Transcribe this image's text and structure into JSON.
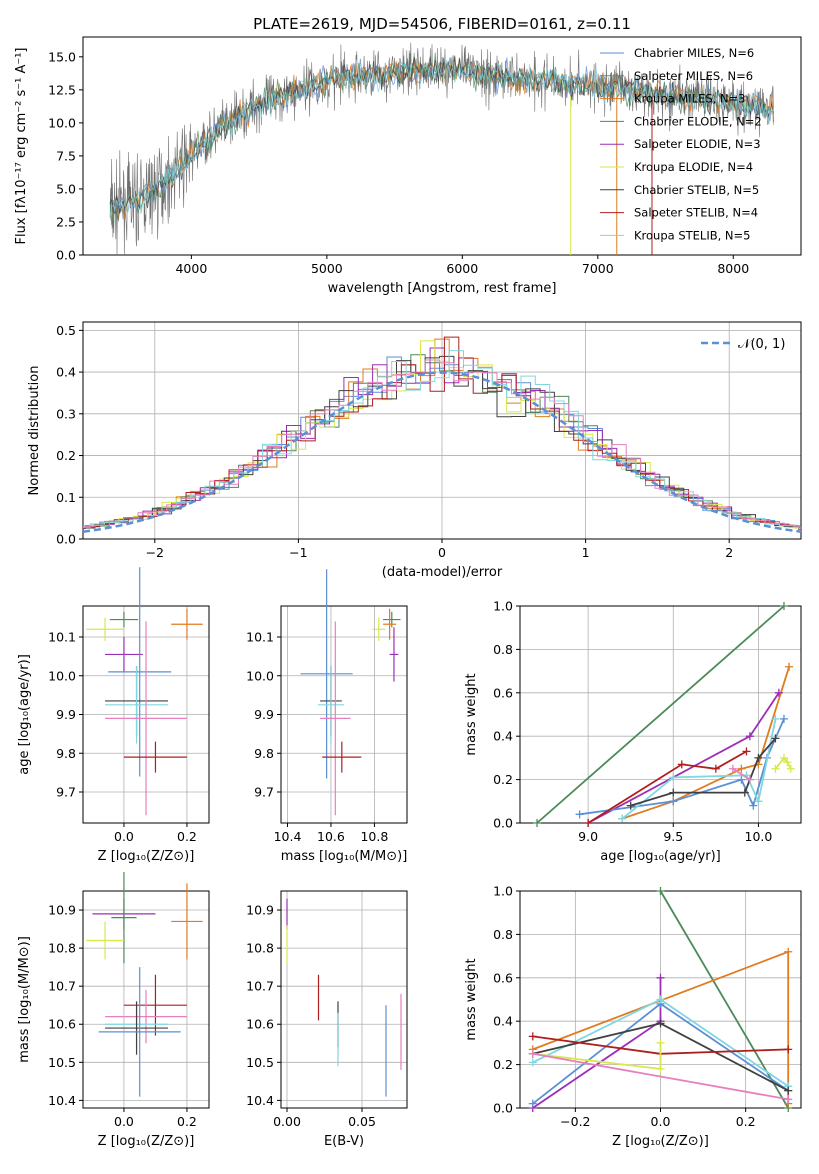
{
  "colors": {
    "chabrier_miles": "#5b8fd6",
    "salpeter_miles": "#2e9f8f",
    "kroupa_miles": "#e07b1f",
    "chabrier_elodie": "#4c8a5a",
    "salpeter_elodie": "#9b2fb5",
    "kroupa_elodie": "#d8e84a",
    "chabrier_stelib": "#404040",
    "salpeter_stelib": "#b01f1f",
    "kroupa_stelib": "#80d7e0",
    "pink": "#e77fbf",
    "spectrum": "#6f6f6f",
    "gauss": "#5b8fd6"
  },
  "chart_data": [
    {
      "type": "line",
      "title": "PLATE=2619, MJD=54506, FIBERID=0161, z=0.11",
      "xlabel": "wavelength [Angstrom, rest frame]",
      "ylabel": "Flux [fλ10⁻¹⁷ erg cm⁻² s⁻¹ A⁻¹]",
      "xlim": [
        3200,
        8500
      ],
      "ylim": [
        0,
        16.5
      ],
      "xticks": [
        "4000",
        "5000",
        "6000",
        "7000",
        "8000"
      ],
      "yticks": [
        "0.0",
        "2.5",
        "5.0",
        "7.5",
        "10.0",
        "12.5",
        "15.0"
      ],
      "legend_position": "right",
      "series": [
        {
          "name": "Chabrier MILES, N_SSP=6"
        },
        {
          "name": "Salpeter MILES, N_SSP=6"
        },
        {
          "name": "Kroupa MILES, N_SSP=3"
        },
        {
          "name": "Chabrier ELODIE, N_SSP=2"
        },
        {
          "name": "Salpeter ELODIE, N_SSP=3"
        },
        {
          "name": "Kroupa ELODIE, N_SSP=4"
        },
        {
          "name": "Chabrier STELIB, N_SSP=5"
        },
        {
          "name": "Salpeter STELIB, N_SSP=4"
        },
        {
          "name": "Kroupa STELIB, N_SSP=5"
        }
      ],
      "continuum": {
        "x": [
          3400,
          3600,
          3800,
          4000,
          4200,
          4500,
          4800,
          5000,
          5200,
          5500,
          5800,
          6000,
          6200,
          6500,
          7000,
          7400,
          7800,
          8300
        ],
        "y": [
          3.5,
          4.0,
          5.5,
          7.5,
          9.5,
          11.5,
          12.5,
          13.2,
          13.5,
          13.8,
          14.0,
          14.0,
          13.6,
          13.3,
          12.8,
          12.3,
          11.8,
          11.0
        ]
      }
    },
    {
      "type": "area",
      "xlabel": "(data-model)/error",
      "ylabel": "Normed distribution",
      "xlim": [
        -2.5,
        2.5
      ],
      "ylim": [
        0,
        0.52
      ],
      "xticks": [
        "−2",
        "−1",
        "0",
        "1",
        "2"
      ],
      "yticks": [
        "0.0",
        "0.1",
        "0.2",
        "0.3",
        "0.4",
        "0.5"
      ],
      "legend": "𝒩(0, 1)",
      "legend_position": "top-right"
    },
    {
      "type": "scatter",
      "xlabel": "Z [log₁₀(Z/Z⊙)]",
      "ylabel": "age  [log₁₀(age/yr)]",
      "xlim": [
        -0.13,
        0.27
      ],
      "ylim": [
        9.62,
        10.18
      ],
      "xticks": [
        "0.0",
        "0.2"
      ],
      "yticks": [
        "9.7",
        "9.8",
        "9.9",
        "10.0",
        "10.1"
      ],
      "points": [
        {
          "c": "chabrier_elodie",
          "x": 0.0,
          "y": 10.145,
          "xe": 0.045,
          "ye": 0.02
        },
        {
          "c": "kroupa_miles",
          "x": 0.2,
          "y": 10.133,
          "xe": 0.05,
          "ye": 0.04
        },
        {
          "c": "kroupa_elodie",
          "x": -0.06,
          "y": 10.12,
          "xe": 0.06,
          "ye": 0.03
        },
        {
          "c": "salpeter_elodie",
          "x": 0.0,
          "y": 10.055,
          "xe": 0.06,
          "ye": 0.045
        },
        {
          "c": "chabrier_miles",
          "x": 0.05,
          "y": 10.01,
          "xe": 0.1,
          "ye": 0.27
        },
        {
          "c": "chabrier_stelib",
          "x": 0.04,
          "y": 9.935,
          "xe": 0.1,
          "ye": 0.09
        },
        {
          "c": "kroupa_stelib",
          "x": 0.04,
          "y": 9.925,
          "xe": 0.1,
          "ye": 0.1
        },
        {
          "c": "pink",
          "x": 0.07,
          "y": 9.89,
          "xe": 0.13,
          "ye": 0.25
        },
        {
          "c": "salpeter_stelib",
          "x": 0.1,
          "y": 9.79,
          "xe": 0.1,
          "ye": 0.04
        }
      ]
    },
    {
      "type": "scatter",
      "xlabel": "mass [log₁₀(M/M⊙)]",
      "xlim": [
        10.37,
        10.95
      ],
      "ylim": [
        9.62,
        10.18
      ],
      "xticks": [
        "10.4",
        "10.6",
        "10.8"
      ],
      "yticks": [
        "9.7",
        "9.8",
        "9.9",
        "10.0",
        "10.1"
      ],
      "points": [
        {
          "c": "chabrier_elodie",
          "x": 10.88,
          "y": 10.145,
          "xe": 0.04,
          "ye": 0.02
        },
        {
          "c": "kroupa_miles",
          "x": 10.87,
          "y": 10.133,
          "xe": 0.03,
          "ye": 0.04
        },
        {
          "c": "kroupa_elodie",
          "x": 10.82,
          "y": 10.12,
          "xe": 0.03,
          "ye": 0.03
        },
        {
          "c": "salpeter_elodie",
          "x": 10.89,
          "y": 10.055,
          "xe": 0.02,
          "ye": 0.07
        },
        {
          "c": "chabrier_miles",
          "x": 10.58,
          "y": 10.005,
          "xe": 0.12,
          "ye": 0.27
        },
        {
          "c": "chabrier_stelib",
          "x": 10.6,
          "y": 9.935,
          "xe": 0.05,
          "ye": 0.09
        },
        {
          "c": "kroupa_stelib",
          "x": 10.6,
          "y": 9.925,
          "xe": 0.06,
          "ye": 0.1
        },
        {
          "c": "pink",
          "x": 10.62,
          "y": 9.89,
          "xe": 0.07,
          "ye": 0.25
        },
        {
          "c": "salpeter_stelib",
          "x": 10.65,
          "y": 9.79,
          "xe": 0.09,
          "ye": 0.04
        }
      ]
    },
    {
      "type": "line",
      "xlabel": "age  [log₁₀(age/yr)]",
      "ylabel": "mass weight",
      "xlim": [
        8.6,
        10.25
      ],
      "ylim": [
        0,
        1
      ],
      "xticks": [
        "9.0",
        "9.5",
        "10.0"
      ],
      "yticks": [
        "0.0",
        "0.2",
        "0.4",
        "0.6",
        "0.8",
        "1.0"
      ],
      "series": [
        {
          "c": "chabrier_elodie",
          "x": [
            8.7,
            10.15
          ],
          "y": [
            0.0,
            1.0
          ]
        },
        {
          "c": "kroupa_miles",
          "x": [
            9.2,
            9.5,
            9.9,
            10.0,
            10.18
          ],
          "y": [
            0.02,
            0.1,
            0.25,
            0.27,
            0.72
          ]
        },
        {
          "c": "salpeter_elodie",
          "x": [
            9.0,
            9.95,
            10.12
          ],
          "y": [
            0.0,
            0.4,
            0.6
          ]
        },
        {
          "c": "chabrier_miles",
          "x": [
            8.95,
            9.5,
            9.9,
            9.97,
            10.05,
            10.15
          ],
          "y": [
            0.04,
            0.1,
            0.2,
            0.08,
            0.3,
            0.48
          ]
        },
        {
          "c": "kroupa_stelib",
          "x": [
            9.2,
            9.5,
            9.93,
            10.0,
            10.1
          ],
          "y": [
            0.02,
            0.21,
            0.22,
            0.1,
            0.48
          ]
        },
        {
          "c": "chabrier_stelib",
          "x": [
            9.25,
            9.5,
            9.92,
            10.0,
            10.1
          ],
          "y": [
            0.08,
            0.14,
            0.14,
            0.3,
            0.39
          ]
        },
        {
          "c": "salpeter_stelib",
          "x": [
            9.0,
            9.55,
            9.75,
            9.93
          ],
          "y": [
            0.0,
            0.27,
            0.25,
            0.33
          ]
        },
        {
          "c": "kroupa_elodie",
          "x": [
            10.1,
            10.15,
            10.17,
            10.19
          ],
          "y": [
            0.25,
            0.3,
            0.28,
            0.25
          ]
        },
        {
          "c": "pink",
          "x": [
            9.85,
            9.95
          ],
          "y": [
            0.25,
            0.2
          ]
        }
      ]
    },
    {
      "type": "scatter",
      "xlabel": "Z [log₁₀(Z/Z⊙)]",
      "ylabel": "mass [log₁₀(M/M⊙)]",
      "xlim": [
        -0.13,
        0.27
      ],
      "ylim": [
        10.38,
        10.95
      ],
      "xticks": [
        "0.0",
        "0.2"
      ],
      "yticks": [
        "10.4",
        "10.5",
        "10.6",
        "10.7",
        "10.8",
        "10.9"
      ],
      "points": [
        {
          "c": "salpeter_elodie",
          "x": 0.0,
          "y": 10.89,
          "xe": 0.1,
          "ye": 0.04
        },
        {
          "c": "chabrier_elodie",
          "x": 0.0,
          "y": 10.88,
          "xe": 0.04,
          "ye": 0.12
        },
        {
          "c": "kroupa_miles",
          "x": 0.2,
          "y": 10.87,
          "xe": 0.05,
          "ye": 0.1
        },
        {
          "c": "kroupa_elodie",
          "x": -0.06,
          "y": 10.82,
          "xe": 0.06,
          "ye": 0.05
        },
        {
          "c": "salpeter_stelib",
          "x": 0.1,
          "y": 10.65,
          "xe": 0.1,
          "ye": 0.08
        },
        {
          "c": "pink",
          "x": 0.07,
          "y": 10.62,
          "xe": 0.13,
          "ye": 0.07
        },
        {
          "c": "kroupa_stelib",
          "x": 0.04,
          "y": 10.6,
          "xe": 0.1,
          "ye": 0.06
        },
        {
          "c": "chabrier_stelib",
          "x": 0.04,
          "y": 10.59,
          "xe": 0.1,
          "ye": 0.07
        },
        {
          "c": "chabrier_miles",
          "x": 0.05,
          "y": 10.58,
          "xe": 0.13,
          "ye": 0.17
        }
      ]
    },
    {
      "type": "scatter",
      "xlabel": "E(B-V)",
      "xlim": [
        -0.004,
        0.08
      ],
      "ylim": [
        10.38,
        10.95
      ],
      "xticks": [
        "0.00",
        "0.05"
      ],
      "yticks": [
        "10.4",
        "10.5",
        "10.6",
        "10.7",
        "10.8",
        "10.9"
      ],
      "points": [
        {
          "c": "salpeter_elodie",
          "x": 0.0,
          "y": 10.89,
          "ye": 0.04
        },
        {
          "c": "kroupa_elodie",
          "x": 0.0,
          "y": 10.81,
          "ye": 0.05
        },
        {
          "c": "salpeter_stelib",
          "x": 0.021,
          "y": 10.67,
          "ye": 0.06
        },
        {
          "c": "chabrier_stelib",
          "x": 0.034,
          "y": 10.6,
          "ye": 0.06
        },
        {
          "c": "kroupa_stelib",
          "x": 0.034,
          "y": 10.56,
          "ye": 0.07
        },
        {
          "c": "chabrier_miles",
          "x": 0.066,
          "y": 10.53,
          "ye": 0.12
        },
        {
          "c": "pink",
          "x": 0.076,
          "y": 10.58,
          "ye": 0.1
        }
      ]
    },
    {
      "type": "line",
      "xlabel": "Z [log₁₀(Z/Z⊙)]",
      "ylabel": "mass weight",
      "xlim": [
        -0.33,
        0.33
      ],
      "ylim": [
        0,
        1
      ],
      "xticks": [
        "−0.2",
        "0.0",
        "0.2"
      ],
      "yticks": [
        "0.0",
        "0.2",
        "0.4",
        "0.6",
        "0.8",
        "1.0"
      ],
      "series": [
        {
          "c": "chabrier_elodie",
          "x": [
            0.0,
            0.3
          ],
          "y": [
            1.0,
            0.0
          ]
        },
        {
          "c": "kroupa_miles",
          "x": [
            -0.3,
            0.3,
            0.3
          ],
          "y": [
            0.27,
            0.72,
            0.02
          ]
        },
        {
          "c": "salpeter_elodie",
          "x": [
            -0.3,
            0.0,
            0.0
          ],
          "y": [
            0.0,
            0.4,
            0.6
          ]
        },
        {
          "c": "chabrier_miles",
          "x": [
            -0.3,
            0.0,
            0.3
          ],
          "y": [
            0.02,
            0.48,
            0.08
          ]
        },
        {
          "c": "kroupa_stelib",
          "x": [
            -0.3,
            0.0,
            0.3
          ],
          "y": [
            0.21,
            0.5,
            0.1
          ]
        },
        {
          "c": "chabrier_stelib",
          "x": [
            -0.3,
            0.0,
            0.3
          ],
          "y": [
            0.25,
            0.39,
            0.08
          ]
        },
        {
          "c": "salpeter_stelib",
          "x": [
            -0.3,
            0.0,
            0.3
          ],
          "y": [
            0.33,
            0.25,
            0.27
          ]
        },
        {
          "c": "kroupa_elodie",
          "x": [
            -0.3,
            0.0,
            0.0
          ],
          "y": [
            0.25,
            0.18,
            0.3
          ]
        },
        {
          "c": "pink",
          "x": [
            -0.3,
            0.3
          ],
          "y": [
            0.25,
            0.04
          ]
        }
      ]
    }
  ]
}
